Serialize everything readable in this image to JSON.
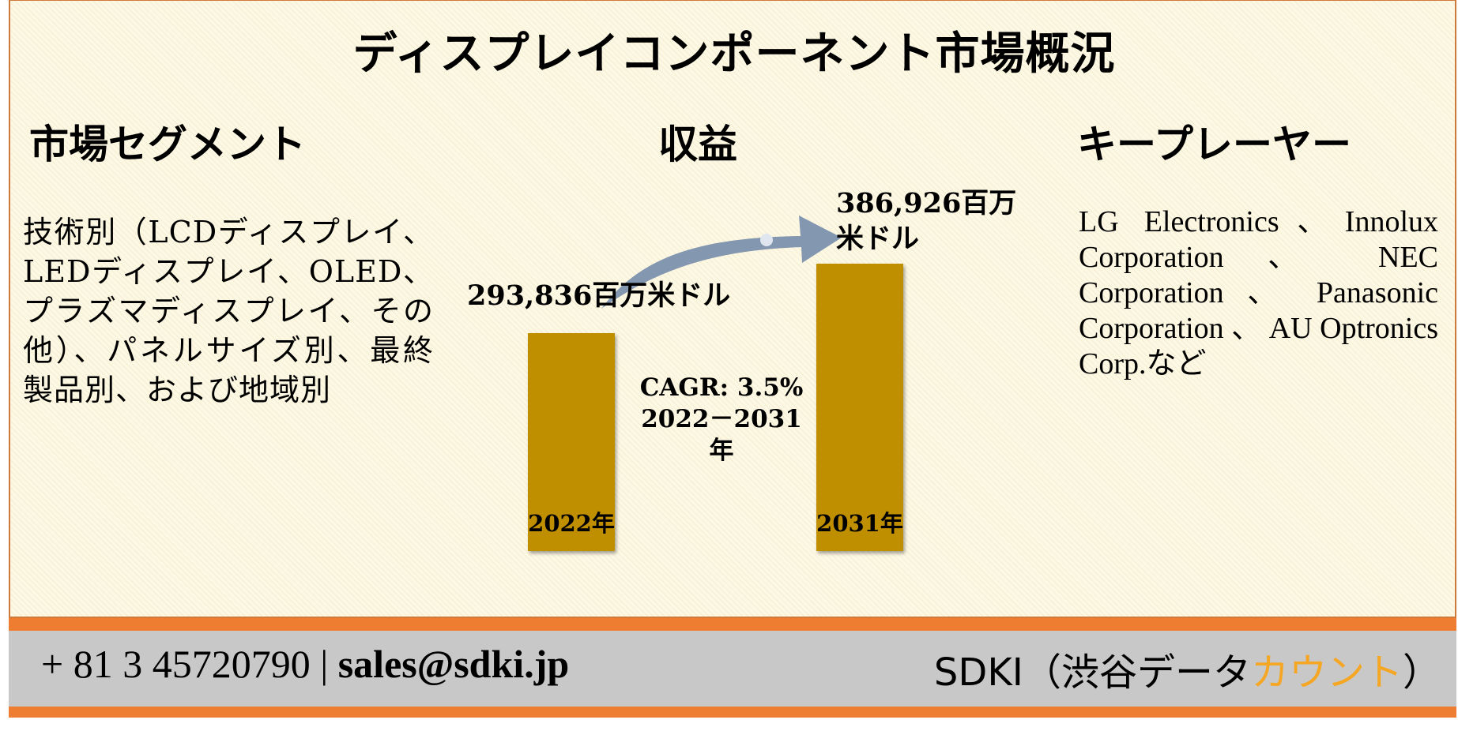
{
  "title": "ディスプレイコンポーネント市場概況",
  "segments": {
    "heading": "市場セグメント",
    "text": "技術別（LCDディスプレイ、LEDディスプレイ、OLED、プラズマディスプレイ、その他）、パネルサイズ別、最終製品別、および地域別"
  },
  "revenue": {
    "heading": "収益",
    "cagr_line1": "CAGR: 3.5%",
    "cagr_line2": "2022－2031年"
  },
  "players": {
    "heading": "キープレーヤー",
    "text": "LG Electronics、Innolux Corporation 、 NEC Corporation 、 Panasonic Corporation 、 AU Optronics Corp.など"
  },
  "chart_data": {
    "type": "bar",
    "categories": [
      "2022年",
      "2031年"
    ],
    "values": [
      293836,
      386926
    ],
    "value_labels": [
      "293,836百万米ドル",
      "386,926百万\n米ドル"
    ],
    "bar_color": "#bf8f00"
  },
  "footer": {
    "phone": "+ 81 3 45720790",
    "separator": "|",
    "email": "sales@sdki.jp",
    "brand_prefix": "SDKI（渋谷データ",
    "brand_accent": "カウント",
    "brand_suffix": "）",
    "accent_color": "#f5a623",
    "stripe_color": "#ee7d31"
  }
}
